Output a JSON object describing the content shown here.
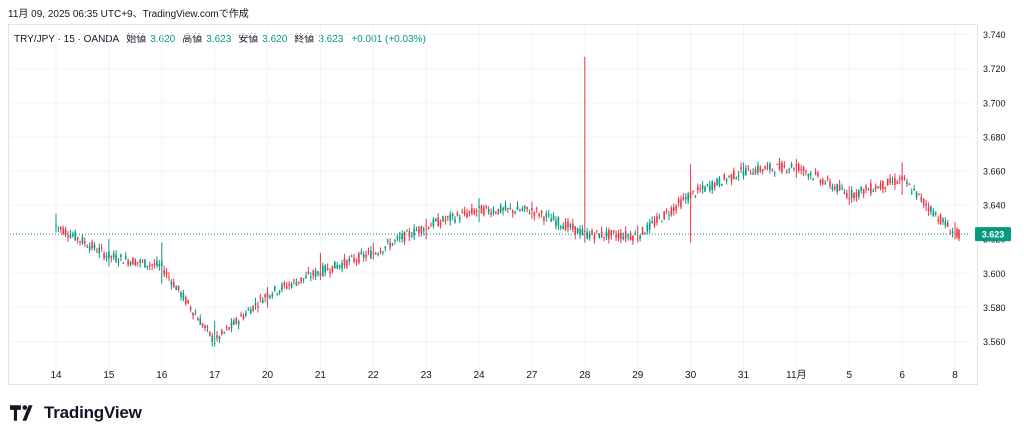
{
  "header": {
    "snapshot_text": "11月 09, 2025 06:35 UTC+9、TradingView.comで作成"
  },
  "legend": {
    "symbol": "TRY/JPY · 15 · OANDA",
    "open_label": "始値",
    "open_value": "3.620",
    "high_label": "高値",
    "high_value": "3.623",
    "low_label": "安値",
    "low_value": "3.620",
    "close_label": "終値",
    "close_value": "3.623",
    "change": "+0.001 (+0.03%)"
  },
  "brand": {
    "name": "TradingView"
  },
  "colors": {
    "up": "#089981",
    "down": "#f23645",
    "grid": "#f0f3fa",
    "last_price_bg": "#089981"
  },
  "chart_data": {
    "type": "candlestick",
    "title": "TRY/JPY · 15 · OANDA",
    "y_ticks": [
      "3.740",
      "3.720",
      "3.700",
      "3.680",
      "3.660",
      "3.640",
      "3.620",
      "3.600",
      "3.580",
      "3.560"
    ],
    "ylim": [
      3.548,
      3.745
    ],
    "x_ticks": [
      "14",
      "15",
      "16",
      "17",
      "20",
      "21",
      "22",
      "23",
      "24",
      "27",
      "28",
      "29",
      "30",
      "31",
      "11月",
      "5",
      "6",
      "8"
    ],
    "last_price": "3.623",
    "last_price_value": 3.623,
    "grid": true,
    "series": [
      {
        "x": "14",
        "close": 3.628,
        "high": 3.635,
        "low": 3.624
      },
      {
        "x": "15",
        "close": 3.61,
        "high": 3.62,
        "low": 3.604
      },
      {
        "x": "16",
        "close": 3.604,
        "high": 3.618,
        "low": 3.594
      },
      {
        "x": "17",
        "close": 3.56,
        "high": 3.572,
        "low": 3.557
      },
      {
        "x": "20",
        "close": 3.588,
        "high": 3.592,
        "low": 3.58
      },
      {
        "x": "21",
        "close": 3.601,
        "high": 3.612,
        "low": 3.596
      },
      {
        "x": "22",
        "close": 3.612,
        "high": 3.618,
        "low": 3.608
      },
      {
        "x": "23",
        "close": 3.628,
        "high": 3.632,
        "low": 3.62
      },
      {
        "x": "24",
        "close": 3.637,
        "high": 3.644,
        "low": 3.63
      },
      {
        "x": "27",
        "close": 3.637,
        "high": 3.642,
        "low": 3.632
      },
      {
        "x": "28",
        "close": 3.623,
        "high": 3.727,
        "low": 3.618
      },
      {
        "x": "29",
        "close": 3.622,
        "high": 3.628,
        "low": 3.618
      },
      {
        "x": "30",
        "close": 3.646,
        "high": 3.664,
        "low": 3.618
      },
      {
        "x": "31",
        "close": 3.66,
        "high": 3.665,
        "low": 3.655
      },
      {
        "x": "11月",
        "close": 3.663,
        "high": 3.667,
        "low": 3.656
      },
      {
        "x": "5",
        "close": 3.646,
        "high": 3.651,
        "low": 3.64
      },
      {
        "x": "6",
        "close": 3.655,
        "high": 3.665,
        "low": 3.646
      },
      {
        "x": "8",
        "close": 3.623,
        "high": 3.63,
        "low": 3.62
      }
    ]
  }
}
